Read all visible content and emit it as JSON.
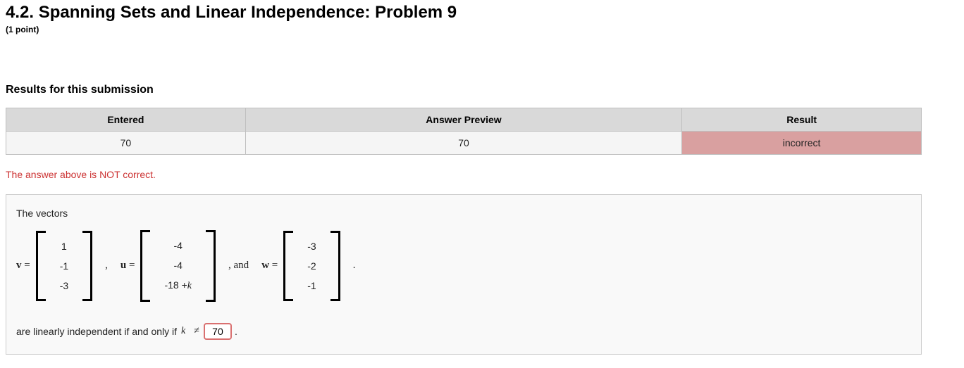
{
  "header": {
    "title": "4.2. Spanning Sets and Linear Independence: Problem 9",
    "points": "(1 point)"
  },
  "results": {
    "heading": "Results for this submission",
    "columns": [
      "Entered",
      "Answer Preview",
      "Result"
    ],
    "row": {
      "entered": "70",
      "preview": "70",
      "result": "incorrect",
      "result_bg": "#d9a0a0",
      "result_color": "#6b2b2b"
    }
  },
  "feedback": "The answer above is NOT correct.",
  "problem": {
    "intro": "The vectors",
    "vectors": {
      "v": {
        "label": "v =",
        "entries": [
          "1",
          "-1",
          "-3"
        ]
      },
      "u": {
        "label": "u =",
        "entries": [
          "-4",
          "-4",
          "-18 +k"
        ],
        "entries_html": [
          "-4",
          "-4",
          "-18 +<span class=\"ital-k\">k</span>"
        ]
      },
      "w": {
        "label": "w =",
        "entries": [
          "-3",
          "-2",
          "-1"
        ]
      }
    },
    "separators": {
      "comma": ",",
      "and": ", and"
    },
    "final_text_prefix": "are linearly independent if and only if",
    "final_var": "k",
    "final_rel": "≠",
    "answer_value": "70",
    "period": "."
  },
  "colors": {
    "header_bg": "#d9d9d9",
    "cell_bg": "#f5f5f5",
    "border": "#bfbfbf",
    "feedback": "#cc3333",
    "box_bg": "#f9f9f9",
    "box_border": "#cccccc",
    "input_border": "#d97070"
  }
}
